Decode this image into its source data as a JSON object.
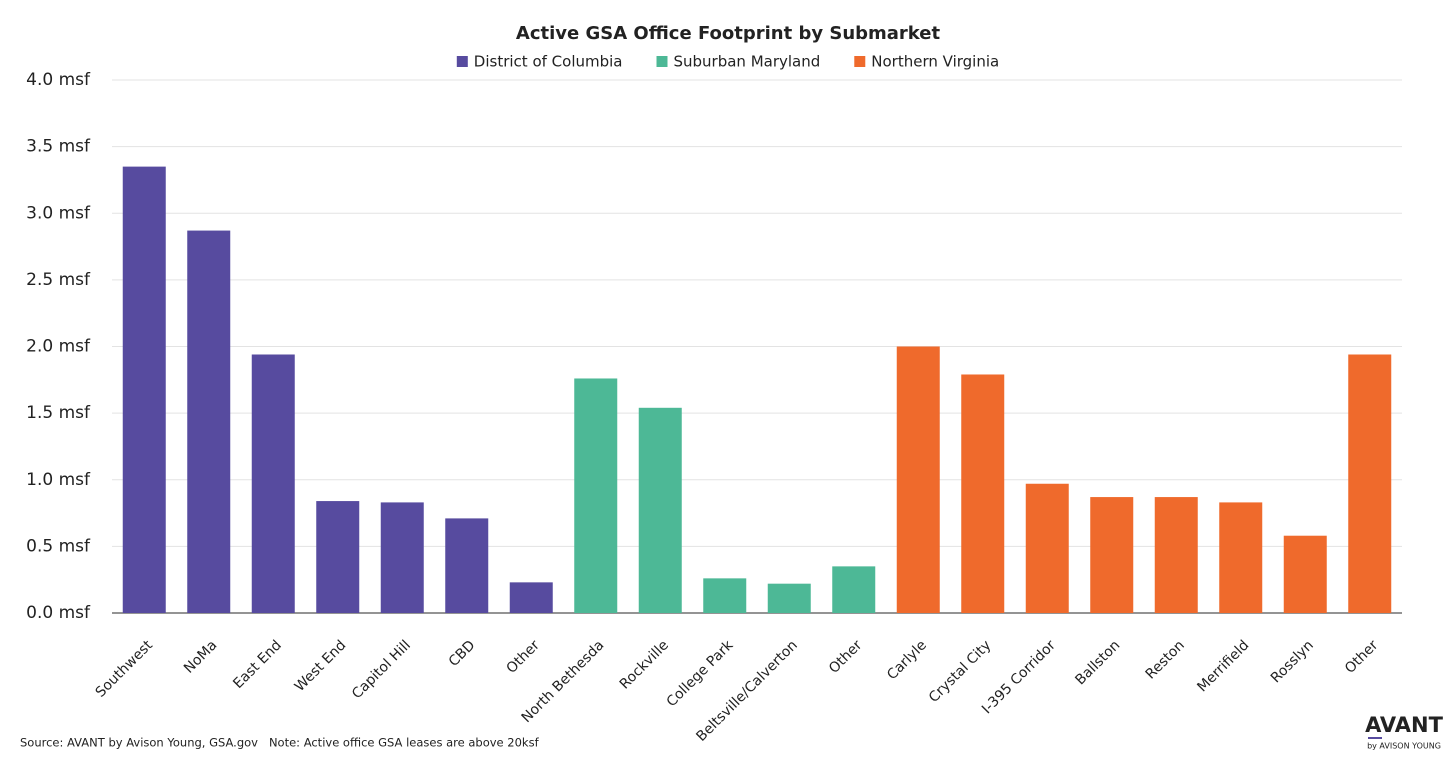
{
  "chart_data": {
    "type": "bar",
    "title": "Active GSA Office Footprint by Submarket",
    "categories": [
      "Southwest",
      "NoMa",
      "East End",
      "West End",
      "Capitol Hill",
      "CBD",
      "Other",
      "North Bethesda",
      "Rockville",
      "College Park",
      "Beltsville/Calverton",
      "Other",
      "Carlyle",
      "Crystal City",
      "I-395 Corridor",
      "Ballston",
      "Reston",
      "Merrifield",
      "Rosslyn",
      "Other"
    ],
    "series": [
      {
        "name": "District of Columbia",
        "color": "#574b9f",
        "values": [
          3.35,
          2.87,
          1.94,
          0.84,
          0.83,
          0.71,
          0.23,
          null,
          null,
          null,
          null,
          null,
          null,
          null,
          null,
          null,
          null,
          null,
          null,
          null
        ]
      },
      {
        "name": "Suburban Maryland",
        "color": "#4db896",
        "values": [
          null,
          null,
          null,
          null,
          null,
          null,
          null,
          1.76,
          1.54,
          0.26,
          0.22,
          0.35,
          null,
          null,
          null,
          null,
          null,
          null,
          null,
          null
        ]
      },
      {
        "name": "Northern Virginia",
        "color": "#ef6a2c",
        "values": [
          null,
          null,
          null,
          null,
          null,
          null,
          null,
          null,
          null,
          null,
          null,
          null,
          2.0,
          1.79,
          0.97,
          0.87,
          0.87,
          0.83,
          0.58,
          1.94
        ]
      }
    ],
    "ylim": [
      0,
      4
    ],
    "yticks": [
      {
        "value": 0,
        "label": "0.0 msf"
      },
      {
        "value": 0.5,
        "label": "0.5 msf"
      },
      {
        "value": 1,
        "label": "1.0 msf"
      },
      {
        "value": 1.5,
        "label": "1.5 msf"
      },
      {
        "value": 2,
        "label": "2.0 msf"
      },
      {
        "value": 2.5,
        "label": "2.5 msf"
      },
      {
        "value": 3,
        "label": "3.0 msf"
      },
      {
        "value": 3.5,
        "label": "3.5 msf"
      },
      {
        "value": 4,
        "label": "4.0 msf"
      }
    ],
    "grid": true,
    "legend": "top",
    "source": "Source: AVANT by Avison Young, GSA.gov   Note: Active office GSA leases are above 20ksf",
    "logo": {
      "name": "AVANT",
      "tagline": "by AVISON YOUNG"
    }
  }
}
